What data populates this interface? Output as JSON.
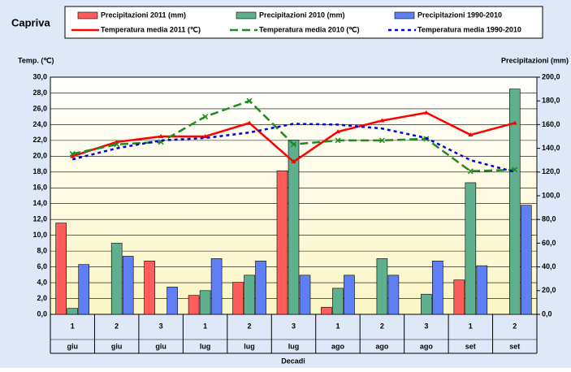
{
  "chart_data": {
    "type": "bar-line",
    "title": "Capriva",
    "y_label": "Temp. (℃)",
    "y2_label": "Precipitazioni (mm)",
    "x_label": "Decadi",
    "categories": [
      "1",
      "2",
      "3",
      "1",
      "2",
      "3",
      "1",
      "2",
      "3",
      "1",
      "2"
    ],
    "months": [
      "giu",
      "giu",
      "giu",
      "lug",
      "lug",
      "lug",
      "ago",
      "ago",
      "ago",
      "set",
      "set"
    ],
    "ylim": [
      0,
      30
    ],
    "yticks": [
      {
        "value": 0,
        "label": "0,0"
      },
      {
        "value": 2,
        "label": "2,0"
      },
      {
        "value": 4,
        "label": "4,0"
      },
      {
        "value": 6,
        "label": "6,0"
      },
      {
        "value": 8,
        "label": "8,0"
      },
      {
        "value": 10,
        "label": "10,0"
      },
      {
        "value": 12,
        "label": "12,0"
      },
      {
        "value": 14,
        "label": "14,0"
      },
      {
        "value": 16,
        "label": "16,0"
      },
      {
        "value": 18,
        "label": "18,0"
      },
      {
        "value": 20,
        "label": "20,0"
      },
      {
        "value": 22,
        "label": "22,0"
      },
      {
        "value": 24,
        "label": "24,0"
      },
      {
        "value": 26,
        "label": "26,0"
      },
      {
        "value": 28,
        "label": "28,0"
      },
      {
        "value": 30,
        "label": "30,0"
      }
    ],
    "y2lim": [
      0,
      200
    ],
    "y2ticks": [
      {
        "value": 0,
        "label": "0,0"
      },
      {
        "value": 20,
        "label": "20,0"
      },
      {
        "value": 40,
        "label": "40,0"
      },
      {
        "value": 60,
        "label": "60,0"
      },
      {
        "value": 80,
        "label": "80,0"
      },
      {
        "value": 100,
        "label": "100,0"
      },
      {
        "value": 120,
        "label": "120,0"
      },
      {
        "value": 140,
        "label": "140,0"
      },
      {
        "value": 160,
        "label": "160,0"
      },
      {
        "value": 180,
        "label": "180,0"
      },
      {
        "value": 200,
        "label": "200,0"
      }
    ],
    "grid": true,
    "series": [
      {
        "name": "Precipitazioni 2011 (mm)",
        "kind": "bar",
        "axis": "y2",
        "color": "#ff5c5c",
        "values": [
          77,
          null,
          45,
          16,
          27,
          121,
          6,
          null,
          null,
          29,
          null
        ]
      },
      {
        "name": "Precipitazioni 2010 (mm)",
        "kind": "bar",
        "axis": "y2",
        "color": "#5fb08f",
        "values": [
          5,
          60,
          0,
          20,
          33,
          147,
          22,
          47,
          17,
          111,
          190
        ]
      },
      {
        "name": "Precipitazioni 1990-2010",
        "kind": "bar",
        "axis": "y2",
        "color": "#5f7ff5",
        "values": [
          42,
          49,
          23,
          47,
          45,
          33,
          33,
          33,
          45,
          41,
          92
        ]
      },
      {
        "name": "Temperatura media 2011 (℃)",
        "kind": "line",
        "color": "#ff0000",
        "dash": "none",
        "marker": "triangle",
        "values": [
          20.0,
          21.8,
          22.5,
          22.5,
          24.2,
          19.3,
          23.1,
          24.5,
          25.5,
          22.7,
          24.2
        ]
      },
      {
        "name": "Temperatura media 2010 (℃)",
        "kind": "line",
        "color": "#1f8a1f",
        "dash": "10,5",
        "marker": "cross",
        "values": [
          20.3,
          21.5,
          21.8,
          25.0,
          27.0,
          21.5,
          22.0,
          22.0,
          22.2,
          18.1,
          18.3
        ]
      },
      {
        "name": "Temperatura media 1990-2010",
        "kind": "line",
        "color": "#0000dd",
        "dash": "4,4",
        "marker": "none",
        "values": [
          19.6,
          21.0,
          22.0,
          22.3,
          23.0,
          24.1,
          24.0,
          23.5,
          22.3,
          19.5,
          18.0
        ]
      }
    ]
  }
}
